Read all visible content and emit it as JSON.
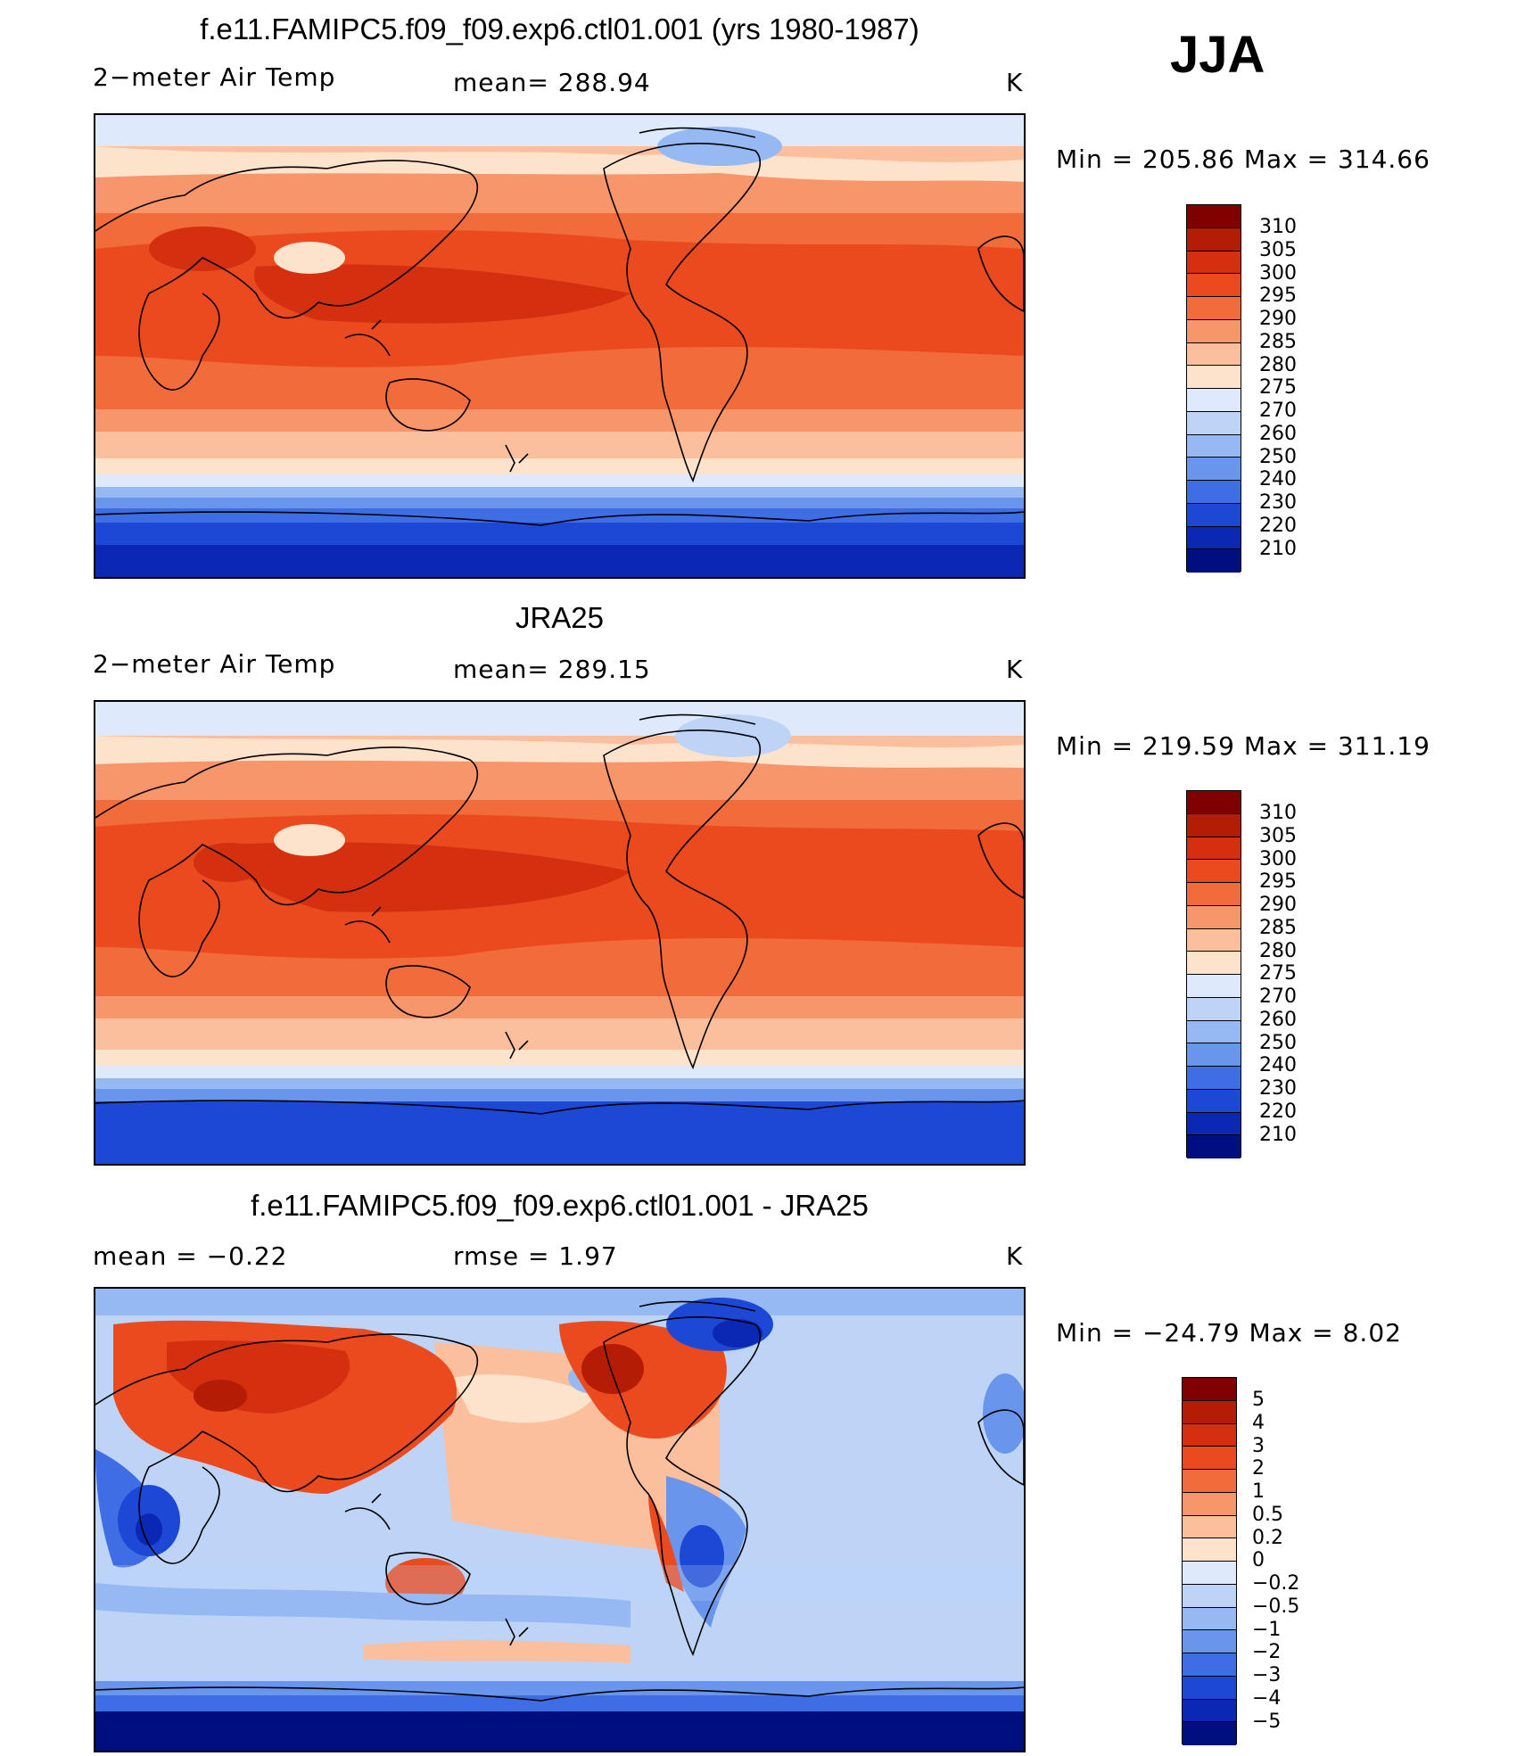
{
  "season": "JJA",
  "panels": [
    {
      "title": "f.e11.FAMIPC5.f09_f09.exp6.ctl01.001 (yrs 1980-1987)",
      "left_label": "2−meter Air Temp",
      "center_label": "mean=  288.94",
      "units": "K",
      "minmax": "Min  =  205.86  Max  =  314.66",
      "colorbar": {
        "colors": [
          "#800000",
          "#b51c06",
          "#d42f0e",
          "#eb4a1e",
          "#f26b3a",
          "#f7966a",
          "#fbbf9e",
          "#fde3cc",
          "#deeafb",
          "#bdd4f7",
          "#96b9f3",
          "#6996ec",
          "#3f6ee4",
          "#1d48d6",
          "#0a28b4",
          "#000f80"
        ],
        "labels": [
          "310",
          "305",
          "300",
          "295",
          "290",
          "285",
          "280",
          "275",
          "270",
          "260",
          "250",
          "240",
          "230",
          "220",
          "210"
        ]
      }
    },
    {
      "title": "JRA25",
      "left_label": "2−meter Air Temp",
      "center_label": "mean=  289.15",
      "units": "K",
      "minmax": "Min  =  219.59  Max  =  311.19",
      "colorbar": {
        "colors": [
          "#800000",
          "#b51c06",
          "#d42f0e",
          "#eb4a1e",
          "#f26b3a",
          "#f7966a",
          "#fbbf9e",
          "#fde3cc",
          "#deeafb",
          "#bdd4f7",
          "#96b9f3",
          "#6996ec",
          "#3f6ee4",
          "#1d48d6",
          "#0a28b4",
          "#000f80"
        ],
        "labels": [
          "310",
          "305",
          "300",
          "295",
          "290",
          "285",
          "280",
          "275",
          "270",
          "260",
          "250",
          "240",
          "230",
          "220",
          "210"
        ]
      }
    },
    {
      "title": "f.e11.FAMIPC5.f09_f09.exp6.ctl01.001 - JRA25",
      "left_label": "mean  =    −0.22",
      "center_label": "rmse  =     1.97",
      "units": "K",
      "minmax": "Min  =  −24.79  Max  =      8.02",
      "colorbar": {
        "colors": [
          "#800000",
          "#b51c06",
          "#d42f0e",
          "#eb4a1e",
          "#f26b3a",
          "#f7966a",
          "#fbbf9e",
          "#fde3cc",
          "#deeafb",
          "#bdd4f7",
          "#96b9f3",
          "#6996ec",
          "#3f6ee4",
          "#1d48d6",
          "#0a28b4",
          "#000f80"
        ],
        "labels": [
          "5",
          "4",
          "3",
          "2",
          "1",
          "0.5",
          "0.2",
          "0",
          "−0.2",
          "−0.5",
          "−1",
          "−2",
          "−3",
          "−4",
          "−5"
        ]
      }
    }
  ]
}
